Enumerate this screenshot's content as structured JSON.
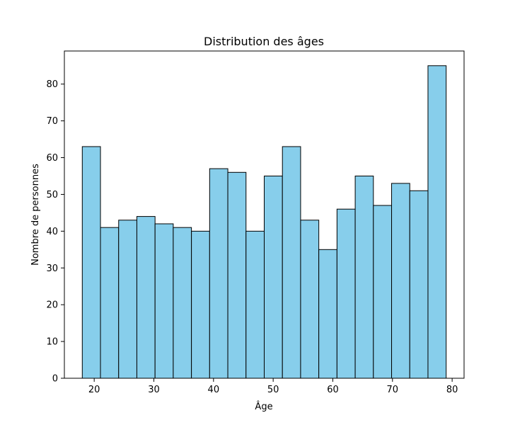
{
  "chart_data": {
    "type": "bar",
    "title": "Distribution des âges",
    "xlabel": "Âge",
    "ylabel": "Nombre de personnes",
    "xlim": [
      15,
      82
    ],
    "ylim": [
      0,
      89
    ],
    "xticks": [
      20,
      30,
      40,
      50,
      60,
      70,
      80
    ],
    "yticks": [
      0,
      10,
      20,
      30,
      40,
      50,
      60,
      70,
      80
    ],
    "bin_start": 18,
    "bin_end": 79,
    "values": [
      63,
      41,
      43,
      44,
      42,
      41,
      40,
      57,
      56,
      40,
      55,
      63,
      43,
      35,
      46,
      55,
      47,
      53,
      51,
      85
    ],
    "bar_color": "#87CEEB",
    "edge_color": "#000000",
    "grid": false
  }
}
